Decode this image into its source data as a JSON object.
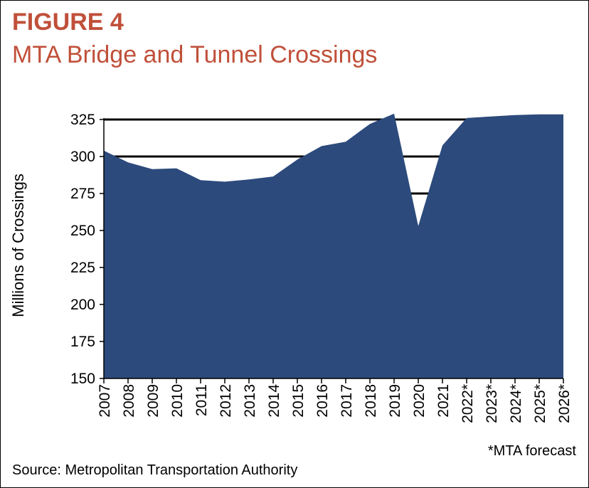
{
  "figure_label": "FIGURE 4",
  "figure_title": "MTA Bridge and Tunnel Crossings",
  "footnote": "*MTA forecast",
  "source": "Source: Metropolitan Transportation Authority",
  "colors": {
    "title": "#c0503a",
    "area": "#2c4a7c"
  },
  "chart_data": {
    "type": "area",
    "ylabel": "Millions of Crossings",
    "ylim": [
      150,
      325
    ],
    "yticks": [
      150,
      175,
      200,
      225,
      250,
      275,
      300,
      325
    ],
    "gridlines": [
      275,
      300,
      325
    ],
    "categories": [
      "2007",
      "2008",
      "2009",
      "2010",
      "2011",
      "2012",
      "2013",
      "2014",
      "2015",
      "2016",
      "2017",
      "2018",
      "2019",
      "2020",
      "2021",
      "2022*",
      "2023*",
      "2024*",
      "2025*",
      "2026*"
    ],
    "values": [
      304,
      296,
      291.5,
      292,
      284,
      283,
      284.5,
      286.5,
      298,
      307,
      310,
      322,
      329,
      253,
      307.5,
      326,
      327,
      328,
      328.5,
      328.5
    ]
  }
}
